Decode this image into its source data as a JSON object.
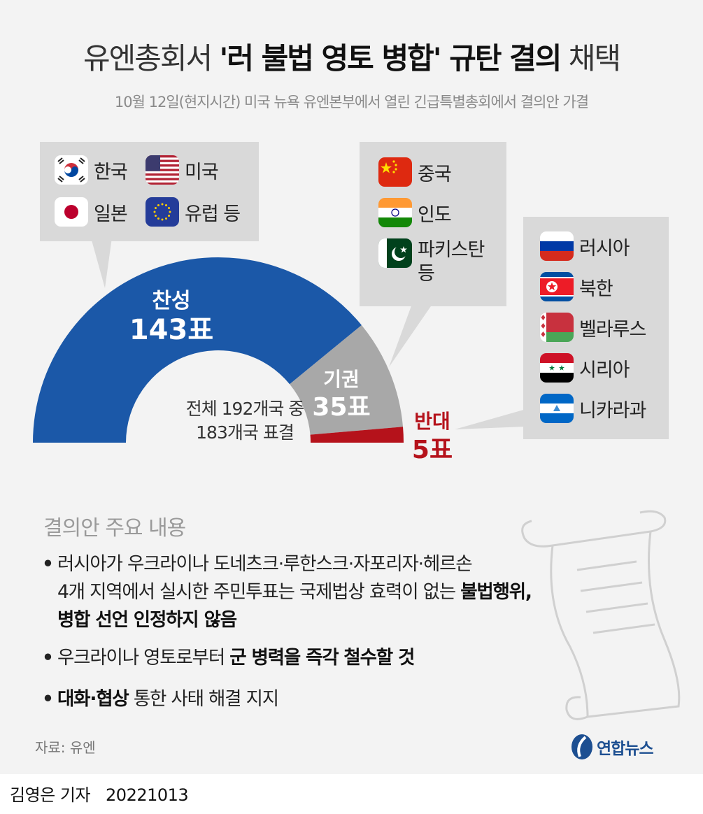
{
  "title": {
    "pre": "유엔총회서 ",
    "bold": "'러 불법 영토 병합' 규탄 결의",
    "post": " 채택"
  },
  "subtitle": "10월 12일(현지시간) 미국 뉴욕 유엔본부에서 열린 긴급특별총회에서 결의안 가결",
  "groups": {
    "favor_countries": [
      {
        "label": "한국",
        "icon": "korea-flag-icon"
      },
      {
        "label": "미국",
        "icon": "usa-flag-icon"
      },
      {
        "label": "일본",
        "icon": "japan-flag-icon"
      },
      {
        "label": "유럽 등",
        "icon": "eu-flag-icon"
      }
    ],
    "abstain_countries": [
      {
        "label": "중국",
        "icon": "china-flag-icon"
      },
      {
        "label": "인도",
        "icon": "india-flag-icon"
      },
      {
        "label": "파키스탄",
        "label2": "등",
        "icon": "pakistan-flag-icon"
      }
    ],
    "against_countries": [
      {
        "label": "러시아",
        "icon": "russia-flag-icon"
      },
      {
        "label": "북한",
        "icon": "north-korea-flag-icon"
      },
      {
        "label": "벨라루스",
        "icon": "belarus-flag-icon"
      },
      {
        "label": "시리아",
        "icon": "syria-flag-icon"
      },
      {
        "label": "니카라과",
        "icon": "nicaragua-flag-icon"
      }
    ]
  },
  "chart_data": {
    "type": "pie",
    "variant": "half-donut",
    "segments": [
      {
        "name": "찬성",
        "value": 143,
        "value_label": "143표",
        "color": "#1b58a8"
      },
      {
        "name": "기권",
        "value": 35,
        "value_label": "35표",
        "color": "#a8a8a8"
      },
      {
        "name": "반대",
        "value": 5,
        "value_label": "5표",
        "color": "#b5121b"
      }
    ],
    "total_label": {
      "line1": "전체 192개국 중",
      "line2": "183개국 표결"
    }
  },
  "resolution": {
    "heading": "결의안 주요 내용",
    "items": [
      {
        "line1": "러시아가 우크라이나 도네츠크·루한스크·자포리자·헤르손",
        "line2_plain": "4개 지역에서 실시한 주민투표는 국제법상 효력이 없는 ",
        "line2_bold": "불법행위,",
        "line3_bold": "병합 선언 인정하지 않음"
      },
      {
        "plain": "우크라이나 영토로부터 ",
        "bold": "군 병력을 즉각 철수할 것"
      },
      {
        "bold": "대화·협상",
        "plain": " 통한 사태 해결 지지"
      }
    ]
  },
  "source": "자료: 유엔",
  "logo": "연합뉴스",
  "footer": {
    "reporter": "김영은 기자",
    "date": "20221013"
  }
}
